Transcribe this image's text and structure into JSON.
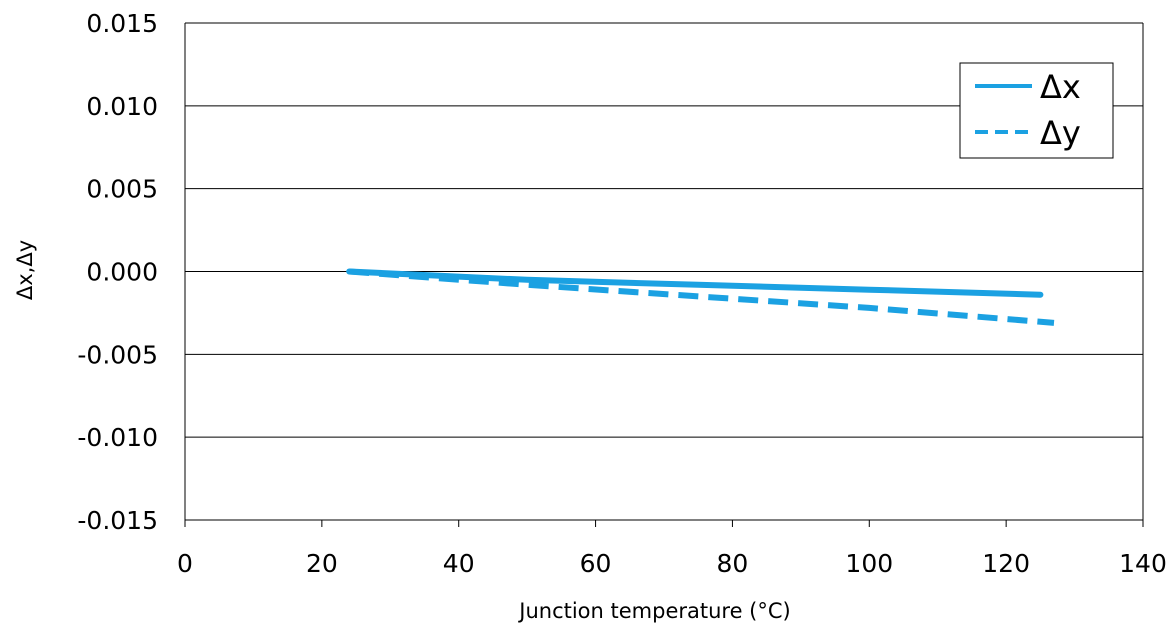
{
  "chart_data": {
    "type": "line",
    "title": "",
    "xlabel": "Junction temperature (°C)",
    "ylabel": "Δx,Δy",
    "xlim": [
      0,
      140
    ],
    "ylim": [
      -0.015,
      0.015
    ],
    "x_ticks": [
      "0",
      "20",
      "40",
      "60",
      "80",
      "100",
      "120",
      "140"
    ],
    "y_ticks": [
      "0.015",
      "0.010",
      "0.005",
      "0.000",
      "-0.005",
      "-0.010",
      "-0.015"
    ],
    "grid": "horizontal",
    "legend_position": "top-right",
    "series": [
      {
        "name": "Δx",
        "style": "solid",
        "color": "#1ba1e2",
        "x": [
          24,
          50,
          75,
          100,
          125
        ],
        "y": [
          0.0,
          -0.0005,
          -0.0008,
          -0.0011,
          -0.0014
        ]
      },
      {
        "name": "Δy",
        "style": "dashed",
        "color": "#1ba1e2",
        "x": [
          24,
          50,
          75,
          100,
          127
        ],
        "y": [
          0.0,
          -0.0008,
          -0.0015,
          -0.0022,
          -0.0031
        ]
      }
    ]
  }
}
